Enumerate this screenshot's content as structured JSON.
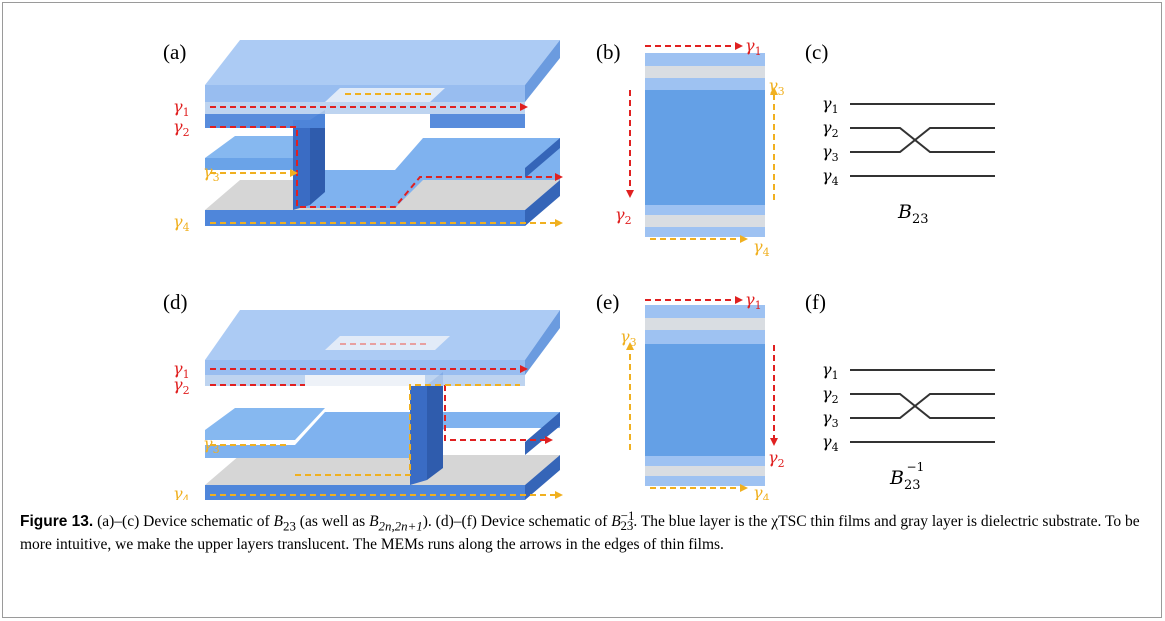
{
  "panels": {
    "a": "(a)",
    "b": "(b)",
    "c": "(c)",
    "d": "(d)",
    "e": "(e)",
    "f": "(f)"
  },
  "labels": {
    "gamma": "γ",
    "idx1": "1",
    "idx2": "2",
    "idx3": "3",
    "idx4": "4"
  },
  "braid_labels": {
    "top_base": "B",
    "top_sub": "23",
    "bottom_base": "B",
    "bottom_sub": "23",
    "bottom_sup": "−1"
  },
  "caption": {
    "figure_label": "Figure 13.",
    "part1": " (a)–(c) Device schematic of ",
    "b_base": "B",
    "b_sub": "23",
    "part2": " (as well as ",
    "b2_base": "B",
    "b2_sub": "2n,2n+1",
    "part3": "). (d)–(f) Device schematic of ",
    "b3_base": "B",
    "b3_sub": "23",
    "b3_sup": "−1",
    "part4": ". The blue layer is the χTSC thin films and gray layer is dielectric substrate. To be more intuitive, we make the upper layers translucent. The MEMs runs along the arrows in the edges of thin films."
  },
  "colors": {
    "red_arrow": "#e02020",
    "yellow_arrow": "#f0b020",
    "blue_film": "#6aa3e8",
    "dark_blue": "#3a6cc4",
    "gray_substrate": "#d4d4d4"
  }
}
